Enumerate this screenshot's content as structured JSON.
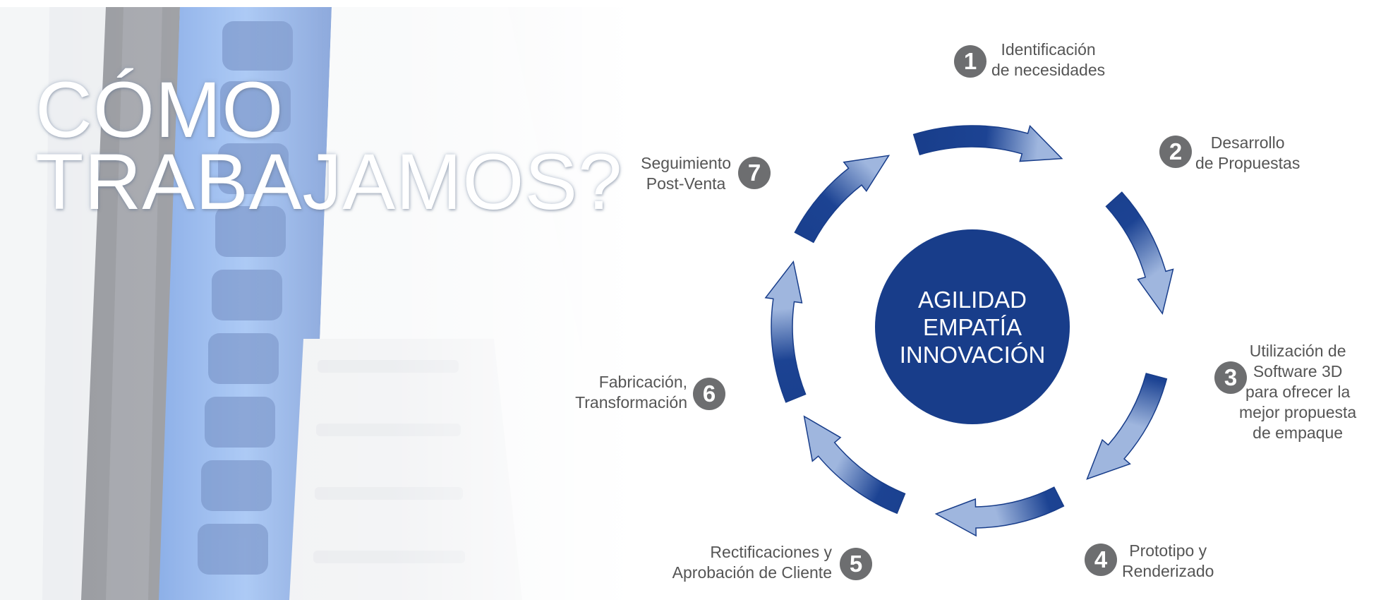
{
  "headline": {
    "line1": "CÓMO",
    "line2": "TRABAJAMOS?"
  },
  "core": {
    "values": [
      "AGILIDAD",
      "EMPATÍA",
      "INNOVACIÓN"
    ]
  },
  "steps": [
    {
      "number": "1",
      "lines": [
        "Identificación",
        "de necesidades"
      ]
    },
    {
      "number": "2",
      "lines": [
        "Desarrollo",
        "de Propuestas"
      ]
    },
    {
      "number": "3",
      "lines": [
        "Utilización de",
        "Software 3D",
        "para ofrecer la",
        "mejor propuesta",
        "de empaque"
      ]
    },
    {
      "number": "4",
      "lines": [
        "Prototipo y",
        "Renderizado"
      ]
    },
    {
      "number": "5",
      "lines": [
        "Rectificaciones y",
        "Aprobación de Cliente"
      ]
    },
    {
      "number": "6",
      "lines": [
        "Fabricación,",
        "Transformación"
      ]
    },
    {
      "number": "7",
      "lines": [
        "Seguimiento",
        "Post-Venta"
      ]
    }
  ],
  "colors": {
    "primary": "#183d8a",
    "badge": "#6d6e70",
    "label": "#555555"
  }
}
